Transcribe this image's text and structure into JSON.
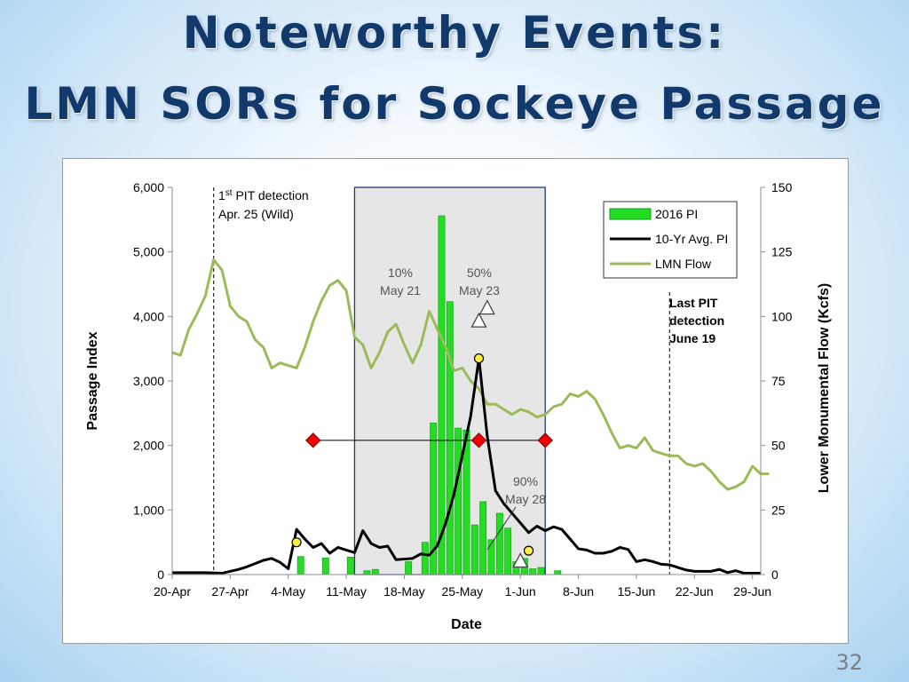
{
  "slide": {
    "title_line1": "Noteworthy Events:",
    "title_line2": "LMN SORs for Sockeye Passage",
    "page_number": "32"
  },
  "chart_data": {
    "type": "bar",
    "xlabel": "Date",
    "ylabel": "Passage Index",
    "y2label": "Lower Monumental Flow (Kcfs)",
    "x_ticks": [
      "20-Apr",
      "27-Apr",
      "4-May",
      "11-May",
      "18-May",
      "25-May",
      "1-Jun",
      "8-Jun",
      "15-Jun",
      "22-Jun",
      "29-Jun"
    ],
    "x_range": [
      "2016-04-20",
      "2016-06-30"
    ],
    "ylim": [
      0,
      6000
    ],
    "y_ticks": [
      "0",
      "1,000",
      "2,000",
      "3,000",
      "4,000",
      "5,000",
      "6,000"
    ],
    "y2lim": [
      0,
      150
    ],
    "y2_ticks": [
      "0",
      "25",
      "50",
      "75",
      "100",
      "125",
      "150"
    ],
    "grid": false,
    "legend_position": "top-right",
    "colors": {
      "bars": "#22dd22",
      "bar_border": "#159915",
      "avg_line": "#000000",
      "flow_line": "#9bbb59",
      "shade": "#e6e6e6",
      "shade_border": "#1f3d7a",
      "marker_fill": "#ee0000",
      "point_fill": "#ffee44"
    },
    "series": [
      {
        "name": "2016 PI",
        "type": "bar",
        "points": [
          [
            "2016-05-05",
            280
          ],
          [
            "2016-05-08",
            260
          ],
          [
            "2016-05-11",
            270
          ],
          [
            "2016-05-13",
            60
          ],
          [
            "2016-05-14",
            80
          ],
          [
            "2016-05-18",
            200
          ],
          [
            "2016-05-20",
            500
          ],
          [
            "2016-05-21",
            2350
          ],
          [
            "2016-05-22",
            5560
          ],
          [
            "2016-05-23",
            4230
          ],
          [
            "2016-05-24",
            2270
          ],
          [
            "2016-05-25",
            2240
          ],
          [
            "2016-05-26",
            770
          ],
          [
            "2016-05-27",
            1130
          ],
          [
            "2016-05-28",
            540
          ],
          [
            "2016-05-29",
            950
          ],
          [
            "2016-05-30",
            720
          ],
          [
            "2016-05-31",
            200
          ],
          [
            "2016-06-01",
            250
          ],
          [
            "2016-06-02",
            90
          ],
          [
            "2016-06-03",
            110
          ],
          [
            "2016-06-05",
            60
          ]
        ]
      },
      {
        "name": "10-Yr Avg. PI",
        "type": "line",
        "points": [
          [
            "2016-04-20",
            30
          ],
          [
            "2016-04-24",
            30
          ],
          [
            "2016-04-26",
            20
          ],
          [
            "2016-04-28",
            80
          ],
          [
            "2016-04-29",
            120
          ],
          [
            "2016-05-01",
            220
          ],
          [
            "2016-05-02",
            250
          ],
          [
            "2016-05-03",
            190
          ],
          [
            "2016-05-04",
            90
          ],
          [
            "2016-05-05",
            700
          ],
          [
            "2016-05-06",
            550
          ],
          [
            "2016-05-07",
            420
          ],
          [
            "2016-05-08",
            480
          ],
          [
            "2016-05-09",
            330
          ],
          [
            "2016-05-10",
            420
          ],
          [
            "2016-05-11",
            380
          ],
          [
            "2016-05-12",
            340
          ],
          [
            "2016-05-13",
            680
          ],
          [
            "2016-05-14",
            480
          ],
          [
            "2016-05-15",
            420
          ],
          [
            "2016-05-16",
            440
          ],
          [
            "2016-05-17",
            230
          ],
          [
            "2016-05-18",
            240
          ],
          [
            "2016-05-19",
            250
          ],
          [
            "2016-05-20",
            320
          ],
          [
            "2016-05-21",
            300
          ],
          [
            "2016-05-22",
            450
          ],
          [
            "2016-05-23",
            800
          ],
          [
            "2016-05-24",
            1250
          ],
          [
            "2016-05-25",
            1850
          ],
          [
            "2016-05-26",
            2450
          ],
          [
            "2016-05-27",
            3350
          ],
          [
            "2016-05-28",
            2150
          ],
          [
            "2016-05-29",
            1300
          ],
          [
            "2016-05-30",
            1100
          ],
          [
            "2016-05-31",
            950
          ],
          [
            "2016-06-01",
            800
          ],
          [
            "2016-06-02",
            650
          ],
          [
            "2016-06-03",
            750
          ],
          [
            "2016-06-04",
            680
          ],
          [
            "2016-06-05",
            740
          ],
          [
            "2016-06-06",
            700
          ],
          [
            "2016-06-07",
            550
          ],
          [
            "2016-06-08",
            400
          ],
          [
            "2016-06-09",
            380
          ],
          [
            "2016-06-10",
            330
          ],
          [
            "2016-06-11",
            330
          ],
          [
            "2016-06-12",
            360
          ],
          [
            "2016-06-13",
            420
          ],
          [
            "2016-06-14",
            390
          ],
          [
            "2016-06-15",
            200
          ],
          [
            "2016-06-16",
            230
          ],
          [
            "2016-06-17",
            200
          ],
          [
            "2016-06-18",
            160
          ],
          [
            "2016-06-19",
            150
          ],
          [
            "2016-06-20",
            110
          ],
          [
            "2016-06-21",
            70
          ],
          [
            "2016-06-22",
            50
          ],
          [
            "2016-06-23",
            50
          ],
          [
            "2016-06-24",
            50
          ],
          [
            "2016-06-25",
            80
          ],
          [
            "2016-06-26",
            30
          ],
          [
            "2016-06-27",
            60
          ],
          [
            "2016-06-28",
            20
          ],
          [
            "2016-06-30",
            20
          ]
        ]
      },
      {
        "name": "LMN Flow",
        "type": "line",
        "axis": "y2",
        "points": [
          [
            "2016-04-20",
            86
          ],
          [
            "2016-04-21",
            85
          ],
          [
            "2016-04-22",
            95
          ],
          [
            "2016-04-23",
            101
          ],
          [
            "2016-04-24",
            108
          ],
          [
            "2016-04-25",
            122
          ],
          [
            "2016-04-26",
            118
          ],
          [
            "2016-04-27",
            104
          ],
          [
            "2016-04-28",
            100
          ],
          [
            "2016-04-29",
            98
          ],
          [
            "2016-04-30",
            91
          ],
          [
            "2016-05-01",
            88
          ],
          [
            "2016-05-02",
            80
          ],
          [
            "2016-05-03",
            82
          ],
          [
            "2016-05-04",
            81
          ],
          [
            "2016-05-05",
            80
          ],
          [
            "2016-05-06",
            88
          ],
          [
            "2016-05-07",
            98
          ],
          [
            "2016-05-08",
            106
          ],
          [
            "2016-05-09",
            112
          ],
          [
            "2016-05-10",
            114
          ],
          [
            "2016-05-11",
            110
          ],
          [
            "2016-05-12",
            92
          ],
          [
            "2016-05-13",
            89
          ],
          [
            "2016-05-14",
            80
          ],
          [
            "2016-05-15",
            86
          ],
          [
            "2016-05-16",
            94
          ],
          [
            "2016-05-17",
            97
          ],
          [
            "2016-05-18",
            89
          ],
          [
            "2016-05-19",
            82
          ],
          [
            "2016-05-20",
            89
          ],
          [
            "2016-05-21",
            102
          ],
          [
            "2016-05-22",
            95
          ],
          [
            "2016-05-23",
            88
          ],
          [
            "2016-05-24",
            79
          ],
          [
            "2016-05-25",
            80
          ],
          [
            "2016-05-26",
            75
          ],
          [
            "2016-05-27",
            72
          ],
          [
            "2016-05-28",
            66
          ],
          [
            "2016-05-29",
            66
          ],
          [
            "2016-05-30",
            64
          ],
          [
            "2016-05-31",
            62
          ],
          [
            "2016-06-01",
            64
          ],
          [
            "2016-06-02",
            63
          ],
          [
            "2016-06-03",
            61
          ],
          [
            "2016-06-04",
            62
          ],
          [
            "2016-06-05",
            65
          ],
          [
            "2016-06-06",
            66
          ],
          [
            "2016-06-07",
            70
          ],
          [
            "2016-06-08",
            69
          ],
          [
            "2016-06-09",
            71
          ],
          [
            "2016-06-10",
            68
          ],
          [
            "2016-06-11",
            62
          ],
          [
            "2016-06-12",
            55
          ],
          [
            "2016-06-13",
            49
          ],
          [
            "2016-06-14",
            50
          ],
          [
            "2016-06-15",
            49
          ],
          [
            "2016-06-16",
            53
          ],
          [
            "2016-06-17",
            48
          ],
          [
            "2016-06-18",
            47
          ],
          [
            "2016-06-19",
            46
          ],
          [
            "2016-06-20",
            46
          ],
          [
            "2016-06-21",
            43
          ],
          [
            "2016-06-22",
            42
          ],
          [
            "2016-06-23",
            43
          ],
          [
            "2016-06-24",
            40
          ],
          [
            "2016-06-25",
            36
          ],
          [
            "2016-06-26",
            33
          ],
          [
            "2016-06-27",
            34
          ],
          [
            "2016-06-28",
            36
          ],
          [
            "2016-06-29",
            42
          ],
          [
            "2016-06-30",
            39
          ],
          [
            "2016-07-01",
            39
          ]
        ]
      }
    ],
    "avg_markers": [
      {
        "date": "2016-05-05",
        "value": 500
      },
      {
        "date": "2016-05-27",
        "value": 3350
      },
      {
        "date": "2016-06-02",
        "value": 370
      }
    ],
    "percentile_markers": [
      {
        "date": "2016-05-27",
        "value": 3920
      },
      {
        "date": "2016-05-28",
        "value": 4120
      },
      {
        "date": "2016-06-01",
        "value": 200
      }
    ],
    "red_markers": [
      {
        "date": "2016-05-07",
        "value": 2080
      },
      {
        "date": "2016-05-27",
        "value": 2080
      },
      {
        "date": "2016-06-04",
        "value": 2080
      }
    ],
    "shaded_period": [
      "2016-05-12",
      "2016-06-04"
    ],
    "dashed_lines": [
      "2016-04-25",
      "2016-06-19"
    ],
    "annotations": {
      "first_pit_sup": "st",
      "first_pit_num": "1",
      "first_pit_text": " PIT detection",
      "first_pit_date": "Apr. 25 (Wild)",
      "last_pit": [
        "Last PIT",
        "detection",
        "June 19"
      ],
      "p10": [
        "10%",
        "May 21"
      ],
      "p50": [
        "50%",
        "May 23"
      ],
      "p90": [
        "90%",
        "May 28"
      ]
    }
  }
}
